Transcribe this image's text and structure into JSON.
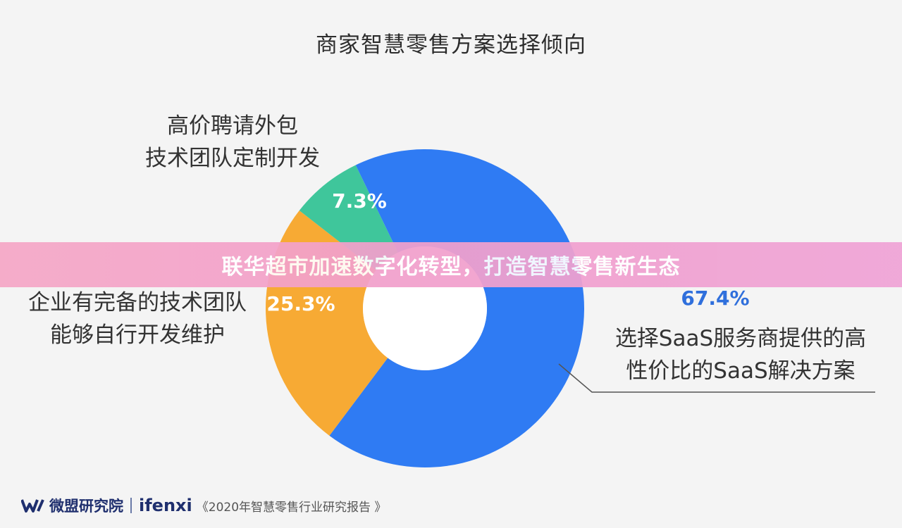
{
  "chart_data": {
    "type": "pie",
    "title": "商家智慧零售方案选择倾向",
    "slices": [
      {
        "label_lines": [
          "选择SaaS服务商提供的高",
          "性价比的SaaS解决方案"
        ],
        "value": 67.4,
        "value_label": "67.4%",
        "color": "#2f7bf3",
        "label_color": "#2f6fdc"
      },
      {
        "label_lines": [
          "企业有完备的技术团队",
          "能够自行开发维护"
        ],
        "value": 25.3,
        "value_label": "25.3%",
        "color": "#f7aa34",
        "label_color": "#ffffff"
      },
      {
        "label_lines": [
          "高价聘请外包",
          "技术团队定制开发"
        ],
        "value": 7.3,
        "value_label": "7.3%",
        "color": "#3fc69b",
        "label_color": "#ffffff"
      }
    ]
  },
  "banner": {
    "text": "联华超市加速数字化转型，打造智慧零售新生态"
  },
  "footer": {
    "brand_weimeng": "微盟研究院",
    "brand_ifenxi": "ifenxi",
    "source": "《2020年智慧零售行业研究报告 》"
  },
  "colors": {
    "saas": "#2f7bf3",
    "inhouse": "#f7aa34",
    "outsourced": "#3fc69b",
    "banner": "#f2a0cc",
    "brand": "#1f2f6e"
  }
}
